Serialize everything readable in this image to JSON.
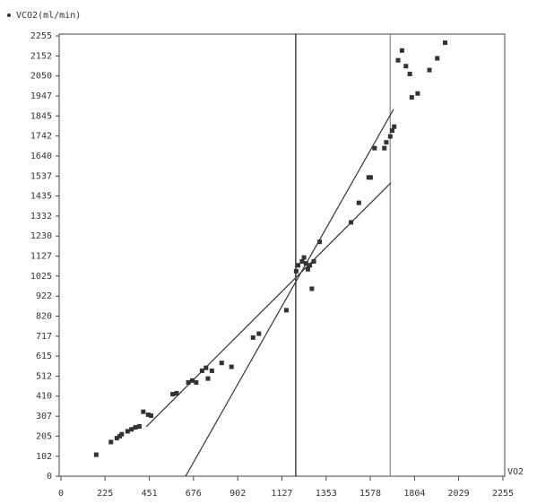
{
  "chart_data": {
    "type": "scatter",
    "x_label": "VO2",
    "series": [
      {
        "name": "VCO2(ml/min)",
        "color": "#333333",
        "x": [
          180,
          255,
          285,
          300,
          310,
          340,
          360,
          380,
          400,
          420,
          445,
          460,
          570,
          590,
          650,
          670,
          690,
          720,
          740,
          750,
          770,
          820,
          870,
          980,
          1010,
          1150,
          1200,
          1210,
          1230,
          1240,
          1250,
          1260,
          1270,
          1280,
          1290,
          1320,
          1480,
          1520,
          1570,
          1580,
          1600,
          1650,
          1660,
          1680,
          1690,
          1700,
          1720,
          1740,
          1760,
          1780,
          1790,
          1820,
          1880,
          1920,
          1960
        ],
        "values": [
          110,
          175,
          195,
          205,
          215,
          230,
          240,
          250,
          255,
          330,
          315,
          310,
          420,
          425,
          480,
          490,
          480,
          540,
          555,
          500,
          540,
          580,
          560,
          710,
          730,
          850,
          1050,
          1080,
          1100,
          1120,
          1090,
          1060,
          1080,
          960,
          1100,
          1200,
          1300,
          1400,
          1530,
          1530,
          1680,
          1680,
          1710,
          1740,
          1770,
          1790,
          2130,
          2180,
          2100,
          2060,
          1940,
          1960,
          2080,
          2140,
          2220
        ]
      }
    ],
    "fit_lines": [
      {
        "x": [
          435,
          1683
        ],
        "y": [
          253,
          1502
        ],
        "color": "#333333"
      },
      {
        "x": [
          636,
          1697
        ],
        "y": [
          0,
          1879
        ],
        "color": "#333333"
      }
    ],
    "vlines": [
      {
        "x": 1198,
        "color": "#111111"
      },
      {
        "x": 1680,
        "color": "#888888"
      }
    ],
    "xlim": [
      0,
      2255
    ],
    "ylim": [
      0,
      2255
    ],
    "xticks": [
      0,
      225,
      451,
      676,
      902,
      1127,
      1353,
      1578,
      1804,
      2029,
      2255
    ],
    "yticks": [
      0,
      102,
      205,
      307,
      410,
      512,
      615,
      717,
      820,
      922,
      1025,
      1127,
      1230,
      1332,
      1435,
      1537,
      1640,
      1742,
      1845,
      1947,
      2050,
      2152,
      2255
    ]
  }
}
